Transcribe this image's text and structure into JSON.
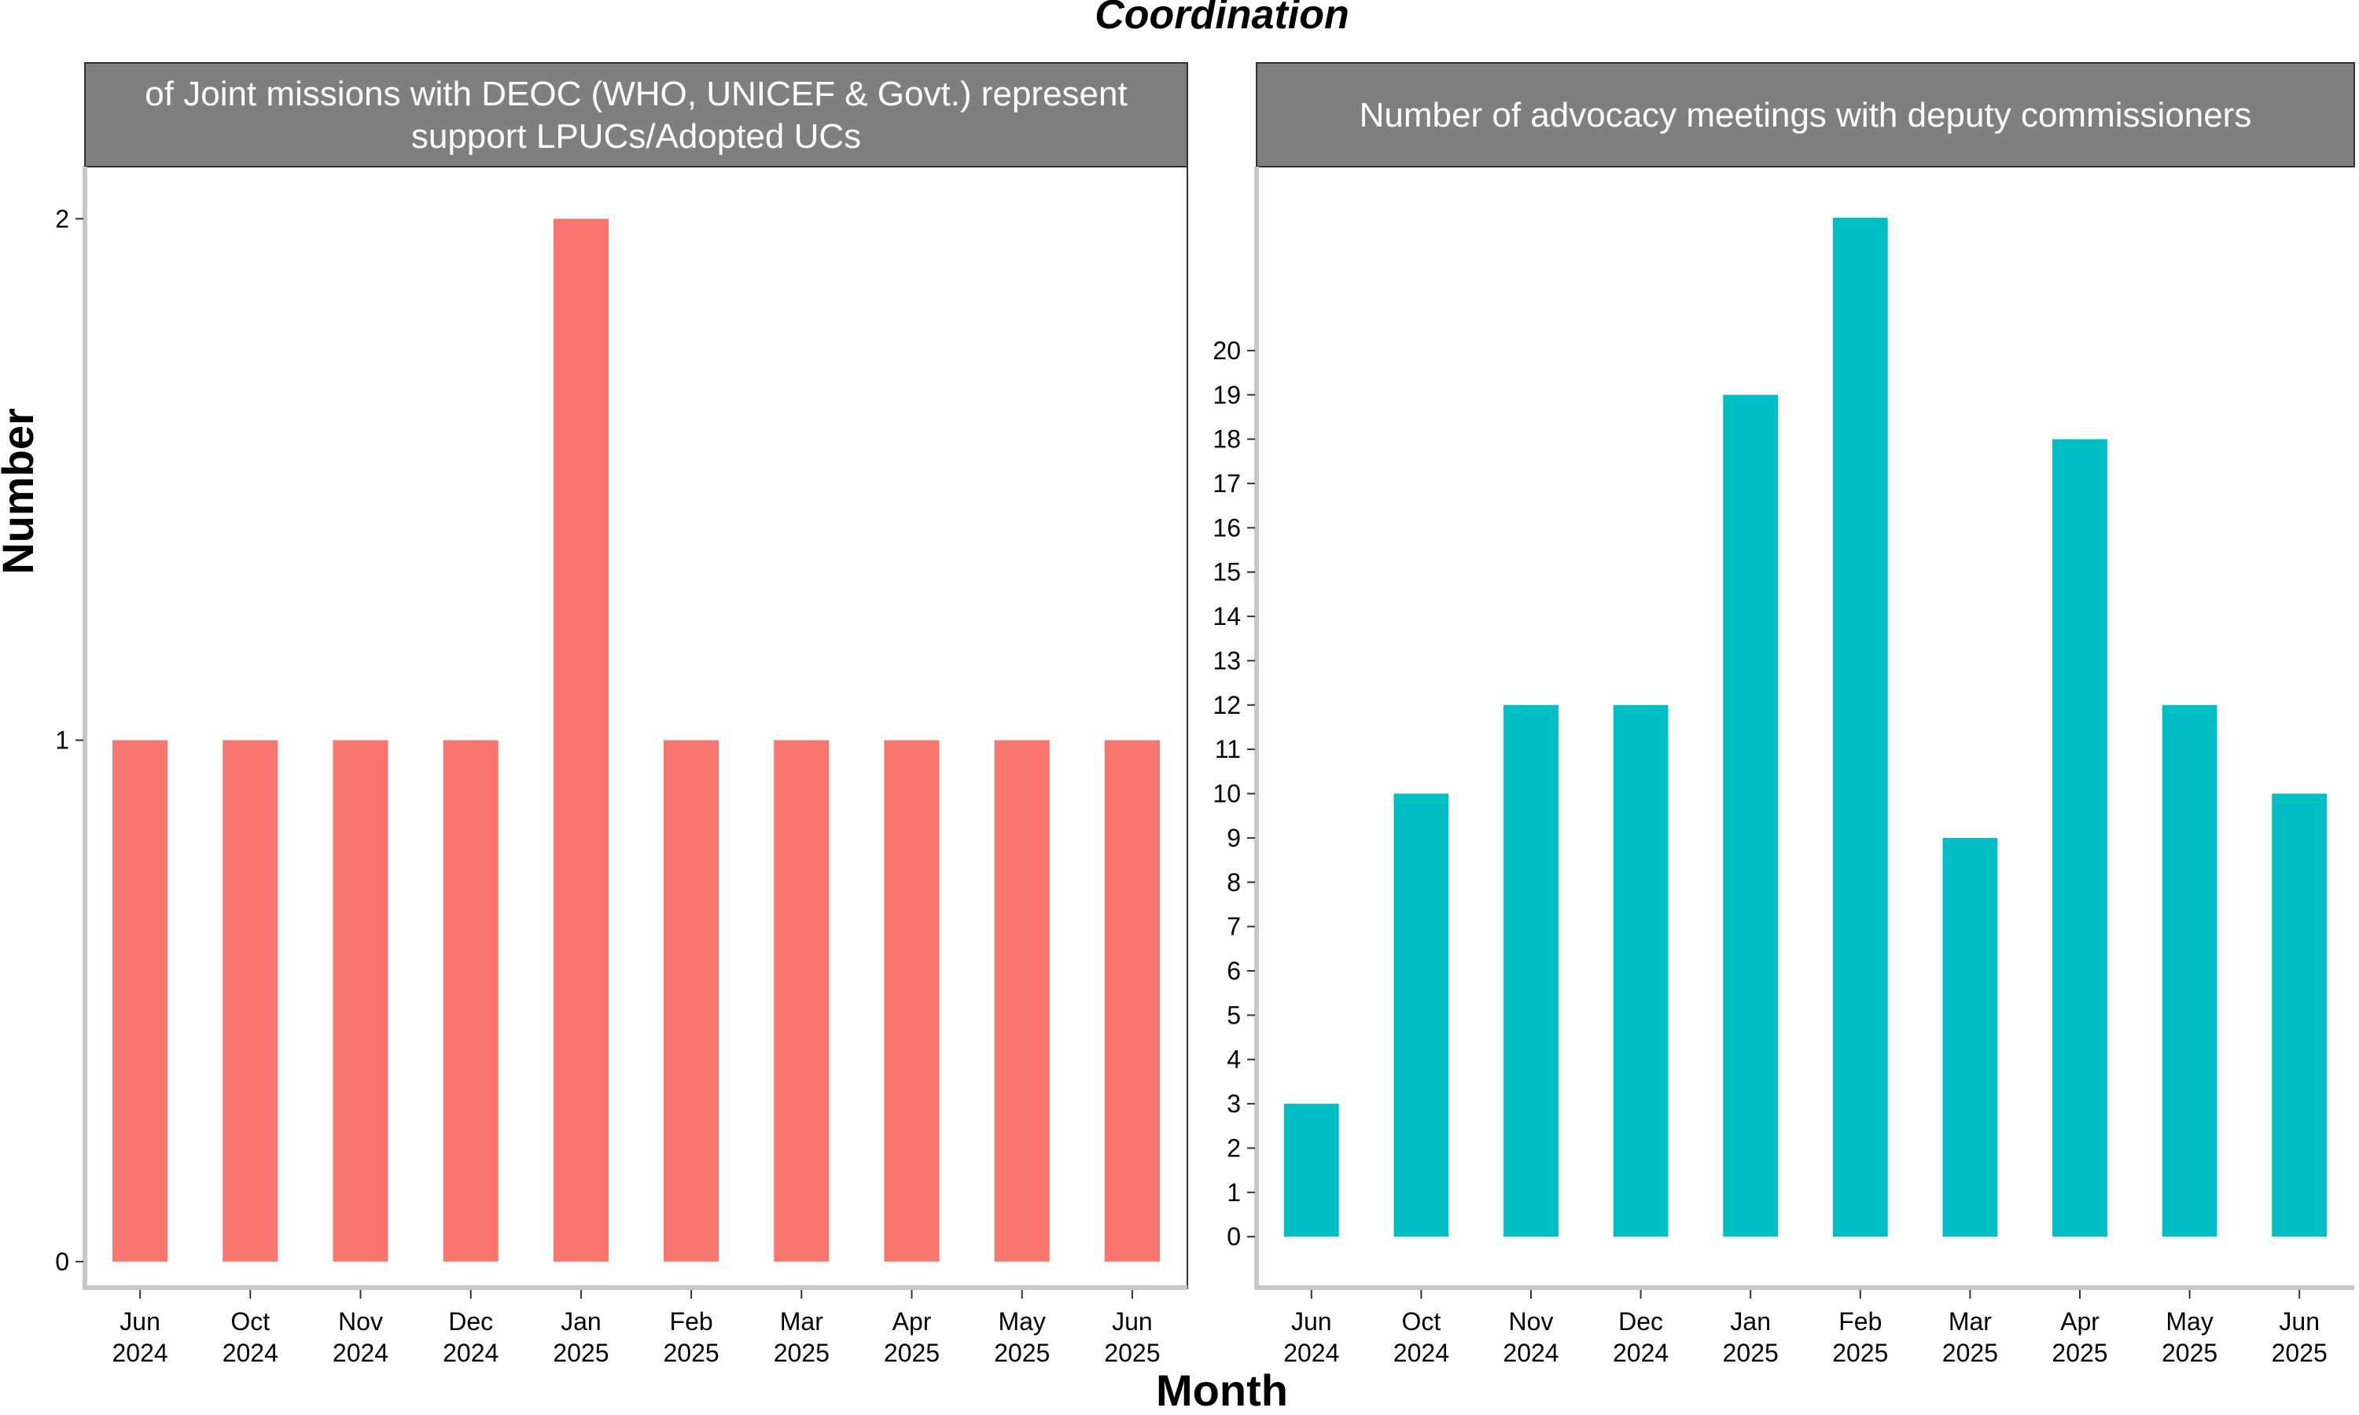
{
  "title": "Coordination",
  "xlabel": "Month",
  "ylabel": "Number",
  "colors": {
    "left": "#F8766D",
    "right": "#00BFC4",
    "strip": "#7F7F7F",
    "axis": "#C8C8C8"
  },
  "chart_data": [
    {
      "type": "bar",
      "facet_title_lines": [
        "of Joint missions with DEOC (WHO, UNICEF & Govt.) represent",
        "support LPUCs/Adopted UCs"
      ],
      "categories": [
        [
          "Jun",
          "2024"
        ],
        [
          "Oct",
          "2024"
        ],
        [
          "Nov",
          "2024"
        ],
        [
          "Dec",
          "2024"
        ],
        [
          "Jan",
          "2025"
        ],
        [
          "Feb",
          "2025"
        ],
        [
          "Mar",
          "2025"
        ],
        [
          "Apr",
          "2025"
        ],
        [
          "May",
          "2025"
        ],
        [
          "Jun",
          "2025"
        ]
      ],
      "values": [
        1,
        1,
        1,
        1,
        2,
        1,
        1,
        1,
        1,
        1
      ],
      "yticks": [
        0,
        1,
        2
      ],
      "ylim": [
        -0.05,
        2.1
      ]
    },
    {
      "type": "bar",
      "facet_title_lines": [
        "Number of advocacy meetings with deputy commissioners"
      ],
      "categories": [
        [
          "Jun",
          "2024"
        ],
        [
          "Oct",
          "2024"
        ],
        [
          "Nov",
          "2024"
        ],
        [
          "Dec",
          "2024"
        ],
        [
          "Jan",
          "2025"
        ],
        [
          "Feb",
          "2025"
        ],
        [
          "Mar",
          "2025"
        ],
        [
          "Apr",
          "2025"
        ],
        [
          "May",
          "2025"
        ],
        [
          "Jun",
          "2025"
        ]
      ],
      "values": [
        3,
        10,
        12,
        12,
        19,
        23,
        9,
        18,
        12,
        10
      ],
      "yticks": [
        0,
        1,
        2,
        3,
        4,
        5,
        6,
        7,
        8,
        9,
        10,
        11,
        12,
        13,
        14,
        15,
        16,
        17,
        18,
        19,
        20
      ],
      "ylim": [
        -1.15,
        24.15
      ]
    }
  ]
}
